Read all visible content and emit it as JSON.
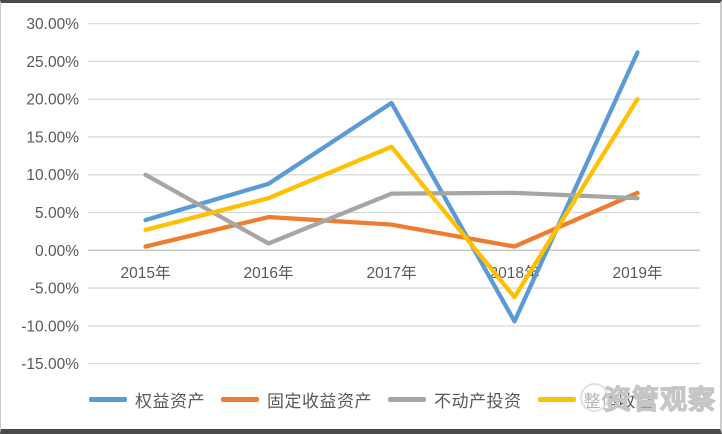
{
  "watermark": {
    "text": "资管观察"
  },
  "colors": {
    "gridline": "#d9d9d9",
    "zero_axis_line": "#c6c6c6",
    "axis_text": "#595959",
    "frame_dark_border": "#4a4a4a",
    "frame_light_border": "#cccccc"
  },
  "chart_data": {
    "type": "line",
    "title": "",
    "categories": [
      "2015年",
      "2016年",
      "2017年",
      "2018年",
      "2019年"
    ],
    "series": [
      {
        "name": "权益资产",
        "color": "#5B9BD5",
        "values": [
          4.0,
          8.8,
          19.5,
          -9.4,
          26.2
        ]
      },
      {
        "name": "固定收益资产",
        "color": "#ED7D31",
        "values": [
          0.5,
          4.4,
          3.4,
          0.5,
          7.6
        ]
      },
      {
        "name": "不动产投资",
        "color": "#A6A6A6",
        "values": [
          10.0,
          0.9,
          7.5,
          7.6,
          6.9
        ]
      },
      {
        "name": "整体收益",
        "color": "#FFC000",
        "values": [
          2.7,
          6.9,
          13.7,
          -6.2,
          20.0
        ]
      }
    ],
    "y_ticks": [
      "30.00%",
      "25.00%",
      "20.00%",
      "15.00%",
      "10.00%",
      "5.00%",
      "0.00%",
      "-5.00%",
      "-10.00%",
      "-15.00%"
    ],
    "y_tick_values": [
      30,
      25,
      20,
      15,
      10,
      5,
      0,
      -5,
      -10,
      -15
    ],
    "ylim": [
      -15,
      30
    ],
    "y_step": 5,
    "grid": true,
    "legend_position": "bottom",
    "xlabel": "",
    "ylabel": ""
  }
}
